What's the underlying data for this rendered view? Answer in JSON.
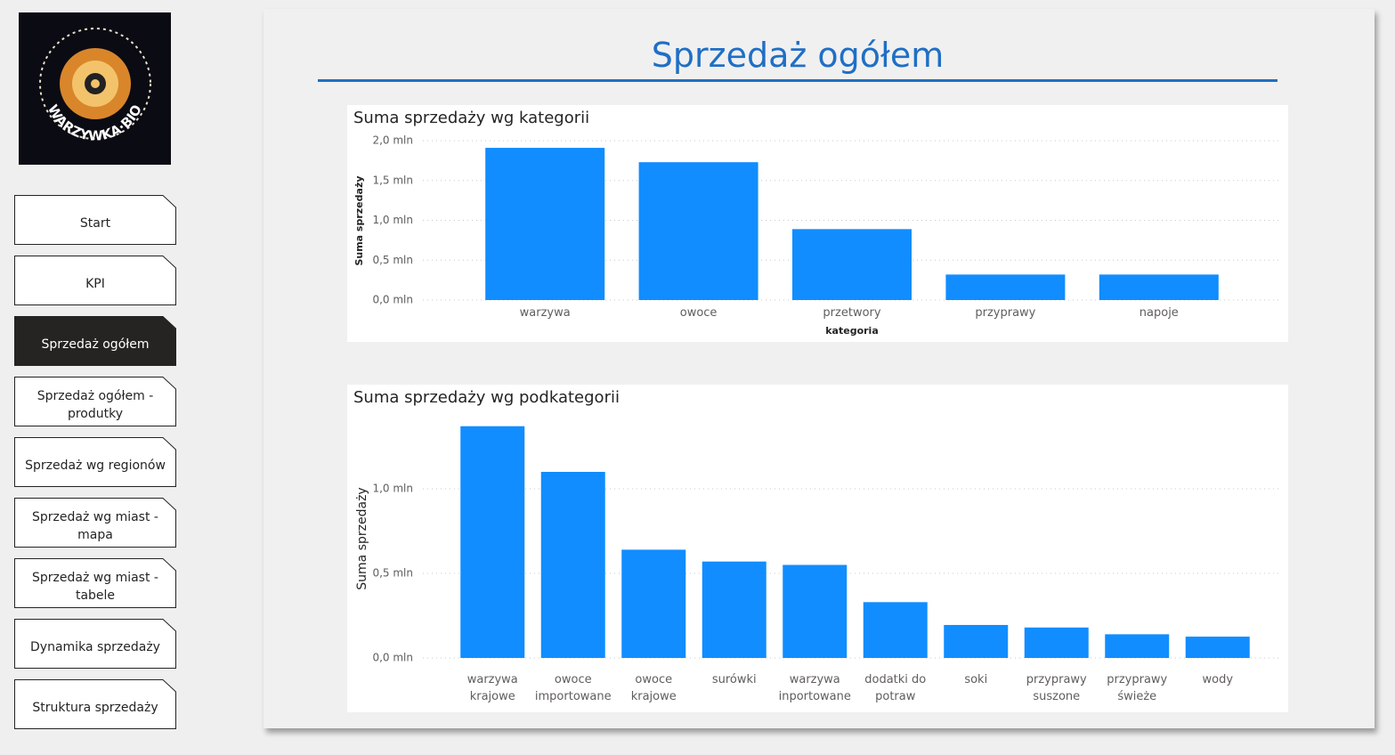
{
  "logo_text": "WARZYWKA·BIO",
  "nav": [
    {
      "label": "Start",
      "active": false
    },
    {
      "label": "KPI",
      "active": false
    },
    {
      "label": "Sprzedaż ogółem",
      "active": true
    },
    {
      "label": "Sprzedaż ogółem - produtky",
      "active": false
    },
    {
      "label": "Sprzedaż wg regionów",
      "active": false
    },
    {
      "label": "Sprzedaż wg miast - mapa",
      "active": false
    },
    {
      "label": "Sprzedaż wg miast - tabele",
      "active": false
    },
    {
      "label": "Dynamika sprzedaży",
      "active": false
    },
    {
      "label": "Struktura sprzedaży",
      "active": false
    }
  ],
  "page_title": "Sprzedaż ogółem",
  "chart_data": [
    {
      "type": "bar",
      "title": "Suma sprzedaży wg kategorii",
      "y_label": "Suma sprzedaży",
      "x_label": "kategoria",
      "categories": [
        "warzywa",
        "owoce",
        "przetwory",
        "przyprawy",
        "napoje"
      ],
      "values": [
        1910000,
        1730000,
        890000,
        320000,
        320000
      ],
      "color": "#118dff",
      "ylim": [
        0,
        2000000
      ],
      "yticks": [
        {
          "value": 0,
          "label": "0,0 mln"
        },
        {
          "value": 500000,
          "label": "0,5 mln"
        },
        {
          "value": 1000000,
          "label": "1,0 mln"
        },
        {
          "value": 1500000,
          "label": "1,5 mln"
        },
        {
          "value": 2000000,
          "label": "2,0 mln"
        }
      ],
      "grid": true
    },
    {
      "type": "bar",
      "title": "Suma sprzedaży wg podkategorii",
      "y_label": "Suma sprzedaży",
      "categories": [
        "warzywa krajowe",
        "owoce importowane",
        "owoce krajowe",
        "surówki",
        "warzywa inportowane",
        "dodatki do potraw",
        "soki",
        "przyprawy suszone",
        "przyprawy świeże",
        "wody"
      ],
      "values": [
        1370000,
        1100000,
        640000,
        570000,
        550000,
        330000,
        195000,
        180000,
        140000,
        126000
      ],
      "color": "#118dff",
      "ylim": [
        0,
        1400000
      ],
      "yticks": [
        {
          "value": 0,
          "label": "0,0 mln"
        },
        {
          "value": 500000,
          "label": "0,5 mln"
        },
        {
          "value": 1000000,
          "label": "1,0 mln"
        }
      ],
      "grid": true
    }
  ]
}
